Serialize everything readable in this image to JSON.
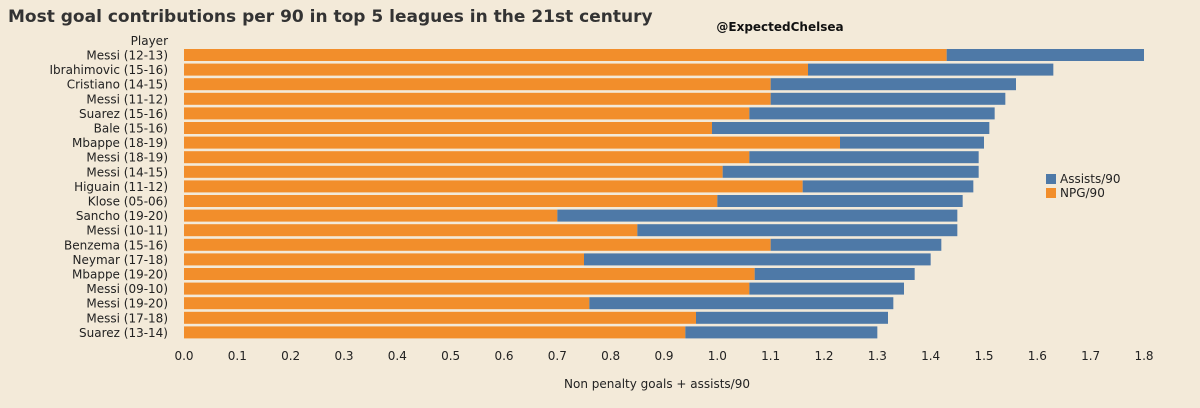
{
  "chart_data": {
    "type": "bar",
    "stacked": true,
    "orientation": "horizontal",
    "title": "Most goal contributions per 90 in top 5 leagues in the 21st century",
    "watermark": "@ExpectedChelsea",
    "category_header": "Player",
    "xlabel": "Non penalty goals + assists/90",
    "xlim": [
      0,
      1.8
    ],
    "xticks": [
      "0.0",
      "0.1",
      "0.2",
      "0.3",
      "0.4",
      "0.5",
      "0.6",
      "0.7",
      "0.8",
      "0.9",
      "1.0",
      "1.1",
      "1.2",
      "1.3",
      "1.4",
      "1.5",
      "1.6",
      "1.7",
      "1.8"
    ],
    "grid": false,
    "legend_position": "right",
    "categories": [
      "Messi (12-13)",
      "Ibrahimovic (15-16)",
      "Cristiano (14-15)",
      "Messi (11-12)",
      "Suarez (15-16)",
      "Bale (15-16)",
      "Mbappe (18-19)",
      "Messi (18-19)",
      "Messi (14-15)",
      "Higuain (11-12)",
      "Klose (05-06)",
      "Sancho (19-20)",
      "Messi (10-11)",
      "Benzema (15-16)",
      "Neymar (17-18)",
      "Mbappe (19-20)",
      "Messi (09-10)",
      "Messi (19-20)",
      "Messi (17-18)",
      "Suarez (13-14)"
    ],
    "series": [
      {
        "name": "NPG/90",
        "color": "#f28e2b",
        "values": [
          1.43,
          1.17,
          1.1,
          1.1,
          1.06,
          0.99,
          1.23,
          1.06,
          1.01,
          1.16,
          1.0,
          0.7,
          0.85,
          1.1,
          0.75,
          1.07,
          1.06,
          0.76,
          0.96,
          0.94
        ]
      },
      {
        "name": "Assists/90",
        "color": "#4e79a7",
        "values": [
          0.37,
          0.46,
          0.46,
          0.44,
          0.46,
          0.52,
          0.27,
          0.43,
          0.48,
          0.32,
          0.46,
          0.75,
          0.6,
          0.32,
          0.65,
          0.3,
          0.29,
          0.57,
          0.36,
          0.36
        ]
      }
    ],
    "legend_order": [
      "Assists/90",
      "NPG/90"
    ]
  }
}
